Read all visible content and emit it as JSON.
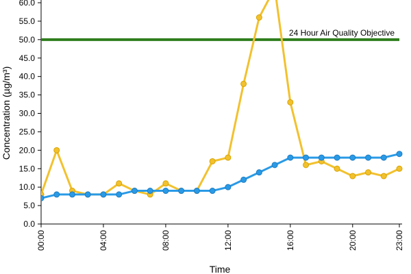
{
  "chart_data": {
    "type": "line",
    "xlabel": "Time",
    "ylabel": "Concentration (µg/m³)",
    "ylim": [
      0,
      60
    ],
    "y_ticks": [
      "0.0",
      "5.0",
      "10.0",
      "15.0",
      "20.0",
      "25.0",
      "30.0",
      "35.0",
      "40.0",
      "45.0",
      "50.0",
      "55.0",
      "60.0"
    ],
    "x_ticks": [
      "00:00",
      "04:00",
      "08:00",
      "12:00",
      "16:00",
      "20:00",
      "23:00"
    ],
    "x_tick_hours": [
      0,
      4,
      8,
      12,
      16,
      20,
      23
    ],
    "x": [
      0,
      1,
      2,
      3,
      4,
      5,
      6,
      7,
      8,
      9,
      10,
      11,
      12,
      13,
      14,
      15,
      16,
      17,
      18,
      19,
      20,
      21,
      22,
      23
    ],
    "grid": false,
    "series": [
      {
        "color": "#f2c12e",
        "marker_edge": "#d9a400",
        "values": [
          8,
          20,
          9,
          8,
          8,
          11,
          9,
          8,
          11,
          9,
          9,
          17,
          18,
          38,
          56,
          64,
          33,
          16,
          17,
          15,
          13,
          14,
          13,
          15
        ]
      },
      {
        "color": "#2a9ae6",
        "marker_edge": "#1c7cc4",
        "values": [
          7,
          8,
          8,
          8,
          8,
          8,
          9,
          9,
          9,
          9,
          9,
          9,
          10,
          12,
          14,
          16,
          18,
          18,
          18,
          18,
          18,
          18,
          18,
          19
        ]
      }
    ],
    "reference_line": {
      "value": 50,
      "label": "24 Hour Air Quality Objective",
      "color": "#2e7d1b"
    }
  }
}
